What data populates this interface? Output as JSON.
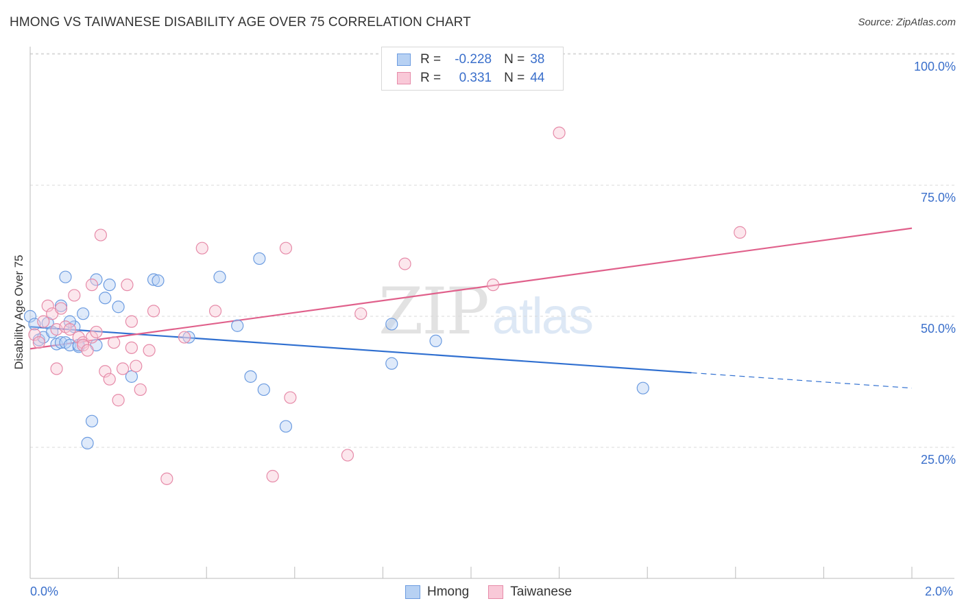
{
  "title": "HMONG VS TAIWANESE DISABILITY AGE OVER 75 CORRELATION CHART",
  "source": "Source: ZipAtlas.com",
  "watermark": {
    "zip": "ZIP",
    "atlas": "atlas"
  },
  "legend": {
    "rows": [
      {
        "r_label": "R =",
        "r_value": "-0.228",
        "n_label": "N =",
        "n_value": "38"
      },
      {
        "r_label": "R =",
        "r_value": "0.331",
        "n_label": "N =",
        "n_value": "44"
      }
    ]
  },
  "colors": {
    "hmong_fill": "#b7d1f3",
    "hmong_stroke": "#6b9be0",
    "hmong_line": "#2f6fd0",
    "taiwanese_fill": "#f9c9d8",
    "taiwanese_stroke": "#e68aa8",
    "taiwanese_line": "#e0608b",
    "tick_text": "#3a6fcb",
    "grid": "#d9d9d9"
  },
  "chart_data": {
    "type": "scatter",
    "title": "HMONG VS TAIWANESE DISABILITY AGE OVER 75 CORRELATION CHART",
    "xlabel": "",
    "ylabel": "Disability Age Over 75",
    "xlim": [
      0.0,
      2.0
    ],
    "ylim": [
      0.0,
      100.0
    ],
    "x_tick_labels": [
      "0.0%",
      "2.0%"
    ],
    "y_ticks": [
      25,
      50,
      75,
      100
    ],
    "y_tick_labels": [
      "25.0%",
      "50.0%",
      "75.0%",
      "100.0%"
    ],
    "grid": true,
    "legend_position": "bottom-center",
    "series": [
      {
        "name": "Hmong",
        "color": "#6b9be0",
        "r": -0.228,
        "n": 38,
        "trend": {
          "x0": 0.0,
          "y0": 48.0,
          "x1": 2.0,
          "y1": 36.3,
          "solid_until_x": 1.5
        },
        "points": [
          [
            0.0,
            50.0
          ],
          [
            0.01,
            48.5
          ],
          [
            0.02,
            45.5
          ],
          [
            0.03,
            46.0
          ],
          [
            0.04,
            48.7
          ],
          [
            0.05,
            47.0
          ],
          [
            0.06,
            44.7
          ],
          [
            0.07,
            52.0
          ],
          [
            0.07,
            45.0
          ],
          [
            0.08,
            45.0
          ],
          [
            0.09,
            44.5
          ],
          [
            0.1,
            48.0
          ],
          [
            0.08,
            57.5
          ],
          [
            0.09,
            49.0
          ],
          [
            0.11,
            44.2
          ],
          [
            0.11,
            44.5
          ],
          [
            0.12,
            50.5
          ],
          [
            0.14,
            30.0
          ],
          [
            0.13,
            25.8
          ],
          [
            0.15,
            57.0
          ],
          [
            0.15,
            44.5
          ],
          [
            0.18,
            56.0
          ],
          [
            0.17,
            53.5
          ],
          [
            0.2,
            51.8
          ],
          [
            0.23,
            38.5
          ],
          [
            0.28,
            57.0
          ],
          [
            0.29,
            56.8
          ],
          [
            0.36,
            46.0
          ],
          [
            0.43,
            57.5
          ],
          [
            0.47,
            48.2
          ],
          [
            0.5,
            38.5
          ],
          [
            0.52,
            61.0
          ],
          [
            0.53,
            36.0
          ],
          [
            0.58,
            29.0
          ],
          [
            0.82,
            41.0
          ],
          [
            0.82,
            48.5
          ],
          [
            0.92,
            45.3
          ],
          [
            1.39,
            36.3
          ]
        ]
      },
      {
        "name": "Taiwanese",
        "color": "#e68aa8",
        "r": 0.331,
        "n": 44,
        "trend": {
          "x0": 0.0,
          "y0": 43.8,
          "x1": 2.0,
          "y1": 66.8
        },
        "points": [
          [
            0.01,
            46.5
          ],
          [
            0.02,
            45.0
          ],
          [
            0.03,
            49.0
          ],
          [
            0.04,
            52.0
          ],
          [
            0.05,
            50.5
          ],
          [
            0.06,
            47.5
          ],
          [
            0.06,
            40.0
          ],
          [
            0.07,
            51.5
          ],
          [
            0.08,
            48.0
          ],
          [
            0.09,
            47.5
          ],
          [
            0.1,
            54.0
          ],
          [
            0.11,
            46.0
          ],
          [
            0.12,
            45.0
          ],
          [
            0.12,
            44.5
          ],
          [
            0.13,
            43.5
          ],
          [
            0.14,
            46.0
          ],
          [
            0.14,
            56.0
          ],
          [
            0.15,
            47.0
          ],
          [
            0.16,
            65.5
          ],
          [
            0.17,
            39.5
          ],
          [
            0.18,
            38.0
          ],
          [
            0.19,
            45.0
          ],
          [
            0.2,
            34.0
          ],
          [
            0.21,
            40.0
          ],
          [
            0.22,
            56.0
          ],
          [
            0.23,
            44.0
          ],
          [
            0.23,
            49.0
          ],
          [
            0.24,
            40.5
          ],
          [
            0.25,
            36.0
          ],
          [
            0.27,
            43.5
          ],
          [
            0.28,
            51.0
          ],
          [
            0.31,
            19.0
          ],
          [
            0.35,
            46.0
          ],
          [
            0.39,
            63.0
          ],
          [
            0.42,
            51.0
          ],
          [
            0.55,
            19.5
          ],
          [
            0.58,
            63.0
          ],
          [
            0.59,
            34.5
          ],
          [
            0.72,
            23.5
          ],
          [
            0.75,
            50.5
          ],
          [
            0.85,
            60.0
          ],
          [
            1.05,
            56.0
          ],
          [
            1.2,
            85.0
          ],
          [
            1.61,
            66.0
          ]
        ]
      }
    ]
  }
}
